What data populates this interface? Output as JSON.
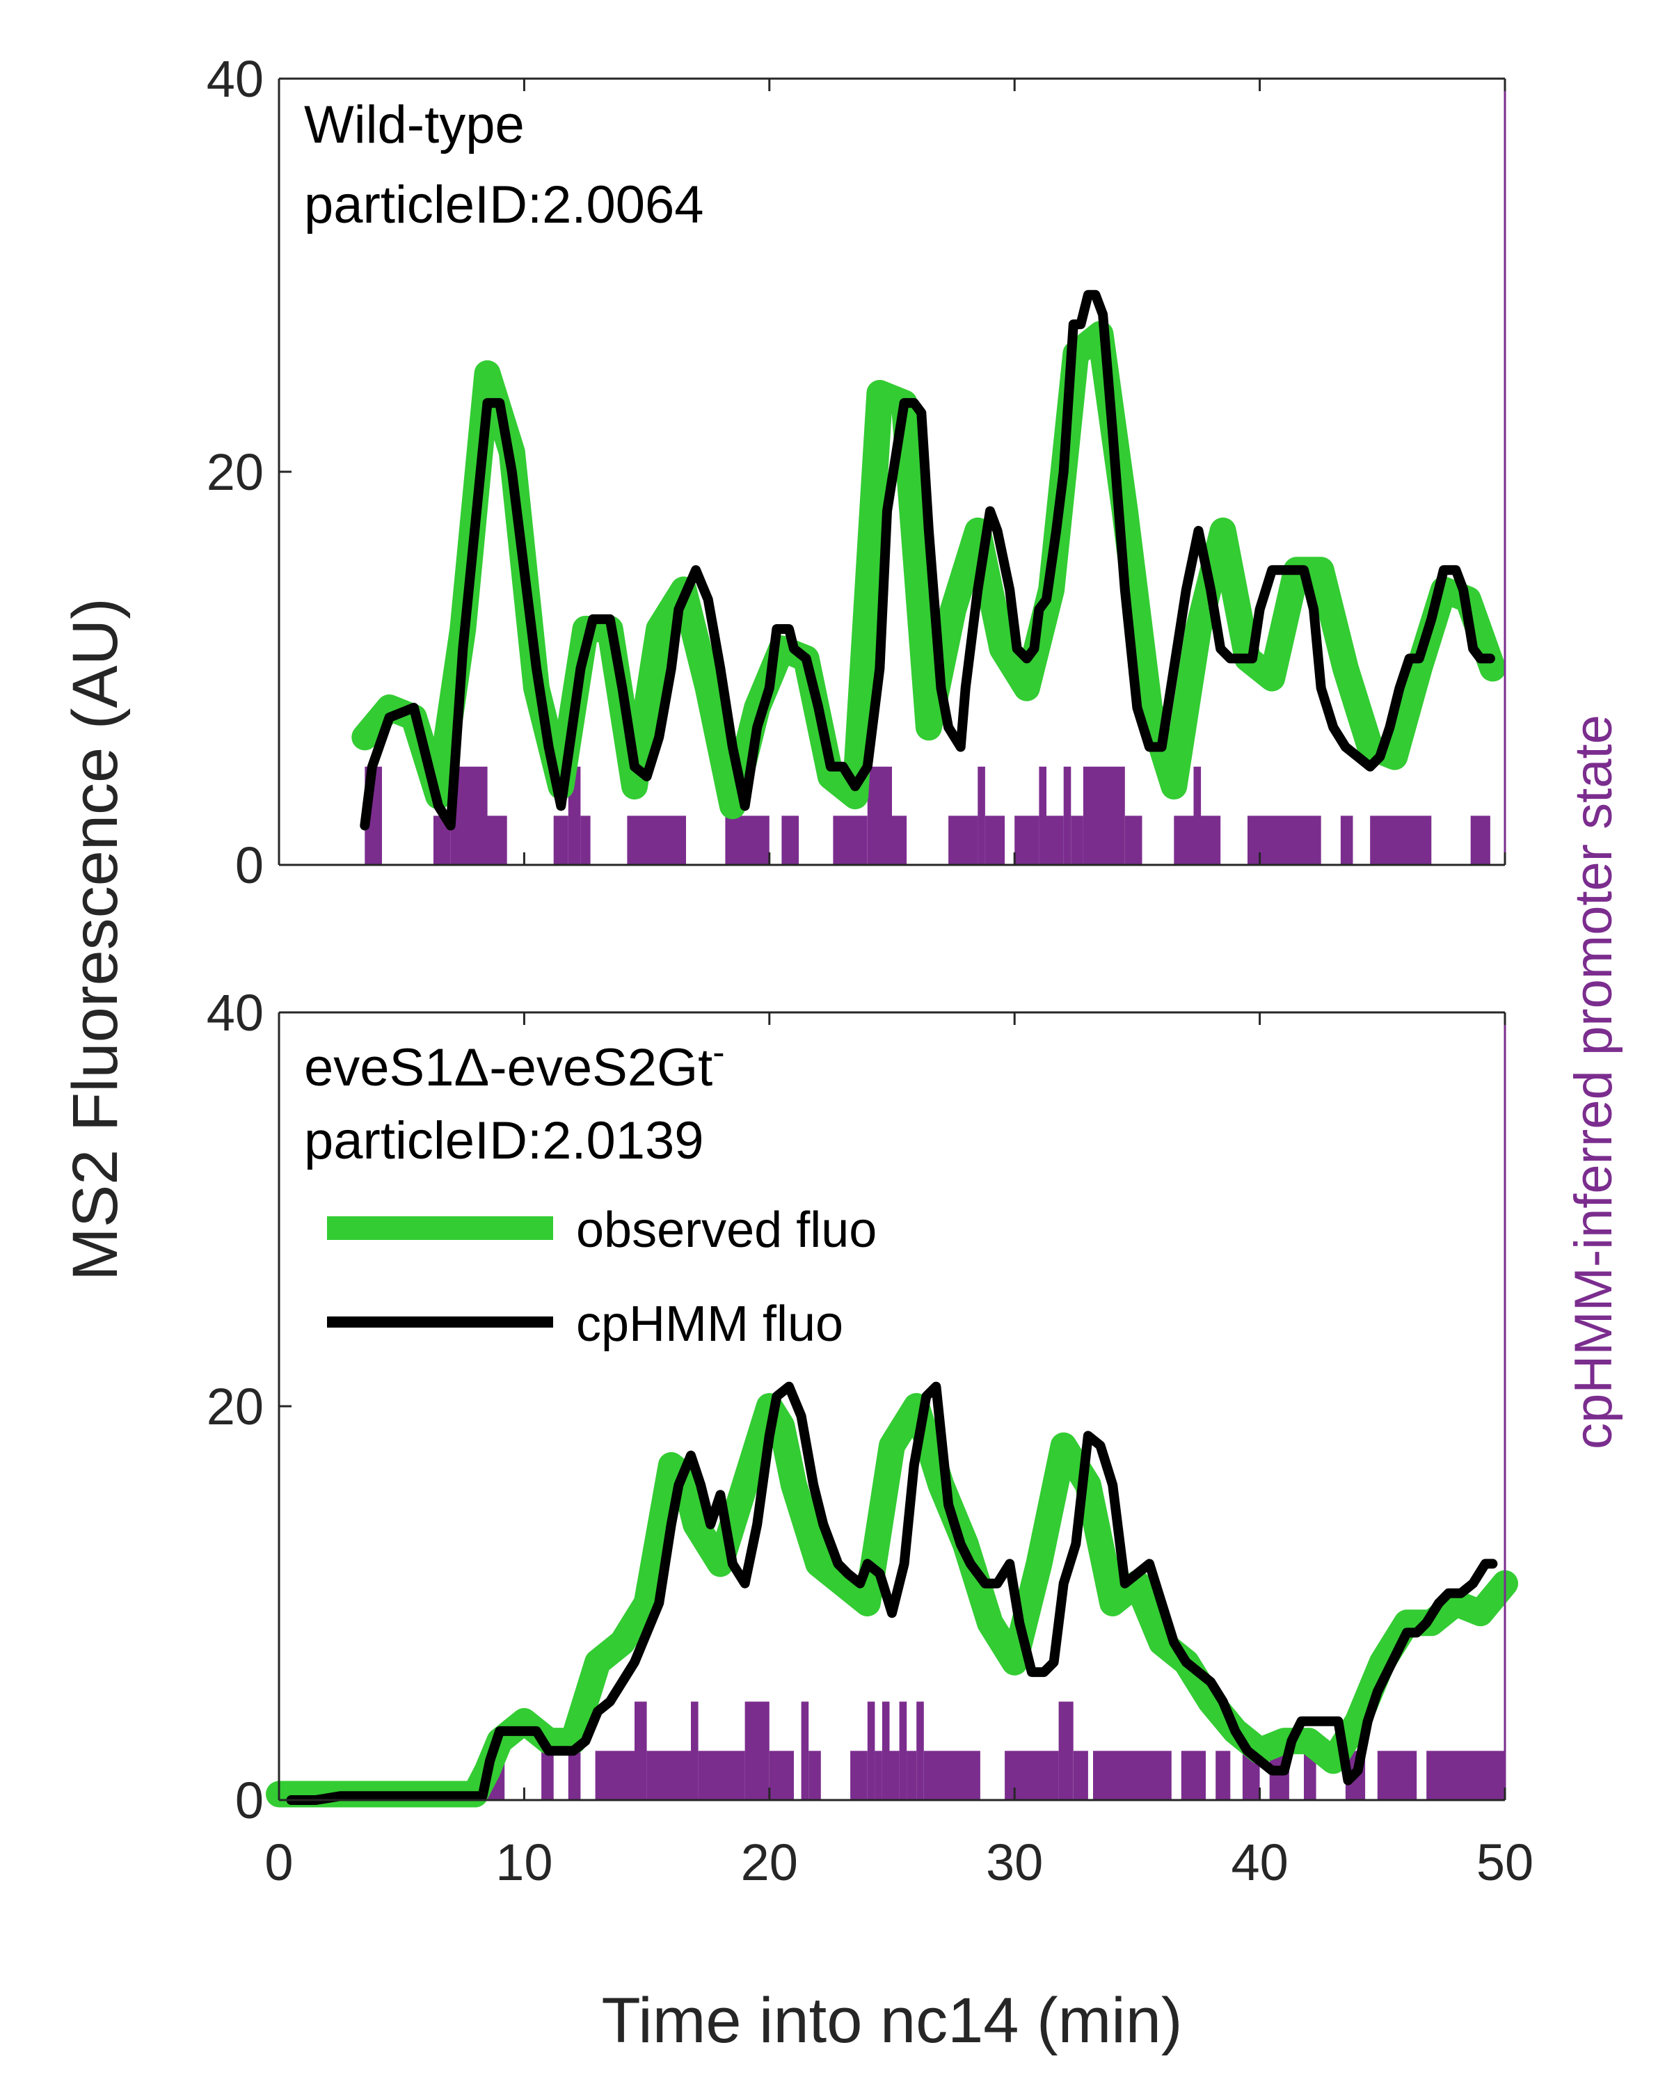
{
  "colors": {
    "observed": "#33cc33",
    "cphmm": "#000000",
    "promoter_state": "#7b2d8e",
    "axis": "#262626"
  },
  "chart_data": [
    {
      "type": "line",
      "label_line1": "Wild-type",
      "label_line2": "particleID:2.0064",
      "xlim": [
        0,
        50
      ],
      "ylim": [
        0,
        40
      ],
      "xticks": [
        0,
        10,
        20,
        30,
        40,
        50
      ],
      "yticks": [
        0,
        20,
        40
      ],
      "show_x_tick_labels": false,
      "series": [
        {
          "name": "observed fluo",
          "x": [
            3.5,
            4.5,
            5.5,
            6.5,
            7.5,
            8.5,
            9.5,
            10.5,
            11.5,
            12.5,
            13.5,
            14.5,
            15.5,
            16.5,
            17.5,
            18.5,
            19.5,
            20.5,
            21.5,
            22.5,
            23.5,
            24.5,
            25.5,
            26.5,
            27.5,
            28.5,
            29.5,
            30.5,
            31.5,
            32.5,
            33.5,
            34.5,
            35.5,
            36.5,
            37.5,
            38.5,
            39.5,
            40.5,
            41.5,
            42.5,
            43.5,
            44.5,
            45.5,
            46.5,
            47.5,
            48.5,
            49.5
          ],
          "y": [
            6.5,
            8,
            7.5,
            3.5,
            12,
            25,
            21,
            9,
            4,
            12,
            12,
            4,
            12,
            14,
            9,
            3,
            8,
            11,
            10.5,
            4.5,
            3.5,
            24,
            23.5,
            7,
            13,
            17,
            11,
            9,
            14,
            26,
            27,
            18,
            8,
            4,
            12,
            17,
            10.5,
            9.5,
            15,
            15,
            10,
            6,
            5.5,
            10,
            14,
            13.5,
            10
          ]
        },
        {
          "name": "cpHMM fluo",
          "x": [
            3.5,
            3.8,
            4.5,
            5.5,
            6.5,
            7.0,
            7.5,
            8.5,
            9.0,
            9.5,
            10.5,
            11.0,
            11.5,
            12.3,
            12.8,
            13.5,
            14.0,
            14.5,
            15.0,
            15.5,
            16.0,
            16.3,
            17.0,
            17.5,
            18.0,
            18.5,
            19.0,
            19.5,
            20.0,
            20.3,
            20.8,
            21.0,
            21.5,
            22.0,
            22.5,
            23.0,
            23.5,
            24.0,
            24.5,
            24.8,
            25.5,
            25.9,
            26.2,
            26.5,
            27.0,
            27.3,
            27.8,
            28.0,
            28.5,
            29.0,
            29.3,
            29.8,
            30.1,
            30.5,
            30.8,
            31.0,
            31.3,
            31.7,
            32.0,
            32.4,
            32.7,
            33.0,
            33.3,
            33.6,
            34.0,
            34.5,
            35.0,
            35.5,
            36.0,
            36.5,
            37.0,
            37.5,
            38.0,
            38.4,
            38.8,
            39.2,
            39.7,
            40.0,
            40.5,
            41.0,
            41.4,
            41.8,
            42.2,
            42.5,
            43.0,
            43.5,
            44.0,
            44.5,
            44.9,
            45.3,
            45.7,
            46.1,
            46.5,
            47.0,
            47.5,
            48.0,
            48.3,
            48.7,
            49.0,
            49.4
          ],
          "y": [
            2,
            5,
            7.5,
            8,
            3,
            2,
            11,
            23.5,
            23.5,
            20,
            10,
            6,
            3,
            10,
            12.5,
            12.5,
            9,
            5,
            4.5,
            6.5,
            10,
            13,
            15,
            13.5,
            10,
            6,
            3,
            7,
            9,
            12,
            12,
            11,
            10.5,
            8,
            5,
            5,
            4,
            5,
            10,
            18,
            23.5,
            23.5,
            23,
            17,
            9,
            7,
            6,
            9,
            14,
            18,
            17,
            14,
            11,
            10.5,
            11,
            13,
            13.5,
            17,
            20,
            27.5,
            27.5,
            29,
            29,
            28,
            22,
            14,
            8,
            6,
            6,
            10,
            14,
            17,
            14,
            11,
            10.5,
            10.5,
            10.5,
            13,
            15,
            15,
            15,
            15,
            13,
            9,
            7,
            6,
            5.5,
            5,
            5.5,
            7,
            9,
            10.5,
            10.5,
            12.5,
            15,
            15,
            14,
            11,
            10.5,
            10.5
          ]
        }
      ],
      "promoter_state": {
        "name": "cpHMM-inferred promoter state",
        "segments": [
          {
            "x0": 3.5,
            "x1": 4.2,
            "state": 2
          },
          {
            "x0": 6.3,
            "x1": 7.0,
            "state": 1
          },
          {
            "x0": 7.0,
            "x1": 8.5,
            "state": 2
          },
          {
            "x0": 8.5,
            "x1": 9.3,
            "state": 1
          },
          {
            "x0": 11.2,
            "x1": 11.8,
            "state": 1
          },
          {
            "x0": 11.8,
            "x1": 12.3,
            "state": 2
          },
          {
            "x0": 12.3,
            "x1": 12.7,
            "state": 1
          },
          {
            "x0": 14.2,
            "x1": 16.6,
            "state": 1
          },
          {
            "x0": 18.2,
            "x1": 20.0,
            "state": 1
          },
          {
            "x0": 20.5,
            "x1": 21.2,
            "state": 1
          },
          {
            "x0": 22.6,
            "x1": 24.0,
            "state": 1
          },
          {
            "x0": 24.0,
            "x1": 25.0,
            "state": 2
          },
          {
            "x0": 25.0,
            "x1": 25.6,
            "state": 1
          },
          {
            "x0": 27.3,
            "x1": 28.5,
            "state": 1
          },
          {
            "x0": 28.5,
            "x1": 28.8,
            "state": 2
          },
          {
            "x0": 28.8,
            "x1": 29.6,
            "state": 1
          },
          {
            "x0": 30.0,
            "x1": 31.0,
            "state": 1
          },
          {
            "x0": 31.0,
            "x1": 31.3,
            "state": 2
          },
          {
            "x0": 31.3,
            "x1": 32.0,
            "state": 1
          },
          {
            "x0": 32.0,
            "x1": 32.3,
            "state": 2
          },
          {
            "x0": 32.3,
            "x1": 32.8,
            "state": 1
          },
          {
            "x0": 32.8,
            "x1": 34.5,
            "state": 2
          },
          {
            "x0": 34.5,
            "x1": 35.2,
            "state": 1
          },
          {
            "x0": 36.5,
            "x1": 37.3,
            "state": 1
          },
          {
            "x0": 37.3,
            "x1": 37.6,
            "state": 2
          },
          {
            "x0": 37.6,
            "x1": 38.4,
            "state": 1
          },
          {
            "x0": 39.5,
            "x1": 42.5,
            "state": 1
          },
          {
            "x0": 43.3,
            "x1": 43.8,
            "state": 1
          },
          {
            "x0": 44.5,
            "x1": 47.0,
            "state": 1
          },
          {
            "x0": 48.6,
            "x1": 49.4,
            "state": 1
          }
        ]
      }
    },
    {
      "type": "line",
      "label_line1": "eveS1Δ-eveS2Gt",
      "label_superscript": "-",
      "label_line2": "particleID:2.0139",
      "xlim": [
        0,
        50
      ],
      "ylim": [
        0,
        40
      ],
      "xticks": [
        0,
        10,
        20,
        30,
        40,
        50
      ],
      "yticks": [
        0,
        20,
        40
      ],
      "show_x_tick_labels": true,
      "legend": {
        "position": "upper-left",
        "entries": [
          "observed fluo",
          "cpHMM fluo"
        ]
      },
      "series": [
        {
          "name": "observed fluo",
          "x": [
            0,
            1,
            2,
            3,
            4,
            5,
            6,
            7,
            8,
            8.5,
            9,
            10,
            11,
            12,
            13,
            14,
            15,
            16,
            16.5,
            17,
            18,
            19,
            20,
            20.5,
            21,
            22,
            23,
            24,
            25,
            26,
            27,
            28,
            29,
            30,
            31,
            32,
            33,
            34,
            35,
            36,
            37,
            38,
            39,
            40,
            41,
            42,
            43,
            44,
            45,
            46,
            47,
            48,
            49,
            50
          ],
          "y": [
            0.3,
            0.3,
            0.3,
            0.3,
            0.3,
            0.3,
            0.3,
            0.3,
            0.3,
            1.5,
            3,
            4,
            3,
            3,
            7,
            8,
            10,
            17,
            16.5,
            14,
            12,
            16,
            20,
            19,
            16,
            12,
            11,
            10,
            18,
            20,
            16,
            13,
            9,
            7,
            12,
            18,
            16,
            10,
            11,
            8,
            7,
            5,
            3.5,
            2.5,
            3,
            3,
            2,
            4,
            7,
            9,
            9,
            10,
            9.5,
            11
          ]
        },
        {
          "name": "cpHMM fluo",
          "x": [
            0.5,
            1.5,
            2.5,
            3.5,
            4.5,
            5.5,
            6.5,
            7.5,
            8.3,
            8.6,
            9.0,
            10.0,
            10.5,
            11.0,
            11.5,
            12.0,
            12.5,
            13.0,
            13.5,
            14.0,
            14.5,
            15.0,
            15.5,
            16.0,
            16.3,
            16.8,
            17.2,
            17.6,
            18.0,
            18.5,
            19.0,
            19.5,
            20.0,
            20.3,
            20.8,
            21.3,
            21.8,
            22.2,
            22.8,
            23.2,
            23.7,
            24.0,
            24.5,
            25.0,
            25.5,
            25.9,
            26.4,
            26.8,
            27.3,
            27.8,
            28.2,
            28.8,
            29.3,
            29.8,
            30.2,
            30.7,
            31.2,
            31.6,
            32.0,
            32.5,
            33.0,
            33.5,
            34.0,
            34.5,
            35.0,
            35.5,
            36.0,
            36.5,
            37.0,
            37.5,
            38.0,
            38.5,
            39.0,
            39.5,
            40.0,
            40.5,
            41.0,
            41.3,
            41.7,
            42.2,
            42.7,
            43.2,
            43.6,
            44.0,
            44.4,
            44.8,
            45.2,
            45.6,
            46.0,
            46.4,
            46.8,
            47.3,
            47.7,
            48.2,
            48.7,
            49.2,
            49.5
          ],
          "y": [
            0,
            0,
            0.2,
            0.2,
            0.2,
            0.2,
            0.2,
            0.2,
            0.2,
            2,
            3.5,
            3.5,
            3.5,
            2.5,
            2.5,
            2.5,
            3,
            4.5,
            5,
            6,
            7,
            8.5,
            10,
            14,
            16,
            17.5,
            16,
            14,
            15.5,
            12,
            11,
            14,
            18.5,
            20.5,
            21,
            19.5,
            16,
            14,
            12,
            11.5,
            11,
            12,
            11.5,
            9.5,
            12,
            17,
            20.5,
            21,
            15,
            13,
            12,
            11,
            11,
            12,
            9,
            6.5,
            6.5,
            7,
            11,
            13,
            18.5,
            18,
            16,
            11,
            11.5,
            12,
            10,
            8,
            7,
            6.5,
            6,
            5,
            3.5,
            2.5,
            2,
            1.5,
            1.5,
            3,
            4,
            4,
            4,
            4,
            1,
            1.5,
            4,
            5.5,
            6.5,
            7.5,
            8.5,
            8.5,
            9,
            10,
            10.5,
            10.5,
            11,
            12,
            12
          ]
        }
      ],
      "promoter_state": {
        "name": "cpHMM-inferred promoter state",
        "segments": [
          {
            "x0": 8.5,
            "x1": 9.2,
            "state": 1
          },
          {
            "x0": 10.7,
            "x1": 11.2,
            "state": 1
          },
          {
            "x0": 11.8,
            "x1": 12.3,
            "state": 1
          },
          {
            "x0": 12.9,
            "x1": 14.5,
            "state": 1
          },
          {
            "x0": 14.5,
            "x1": 15.0,
            "state": 2
          },
          {
            "x0": 15.0,
            "x1": 16.8,
            "state": 1
          },
          {
            "x0": 16.8,
            "x1": 17.1,
            "state": 2
          },
          {
            "x0": 17.1,
            "x1": 19.0,
            "state": 1
          },
          {
            "x0": 19.0,
            "x1": 20.0,
            "state": 2
          },
          {
            "x0": 20.0,
            "x1": 21.0,
            "state": 1
          },
          {
            "x0": 21.3,
            "x1": 21.6,
            "state": 2
          },
          {
            "x0": 21.6,
            "x1": 22.1,
            "state": 1
          },
          {
            "x0": 23.3,
            "x1": 24.0,
            "state": 1
          },
          {
            "x0": 24.0,
            "x1": 24.3,
            "state": 2
          },
          {
            "x0": 24.3,
            "x1": 24.6,
            "state": 1
          },
          {
            "x0": 24.6,
            "x1": 24.9,
            "state": 2
          },
          {
            "x0": 24.9,
            "x1": 25.3,
            "state": 1
          },
          {
            "x0": 25.3,
            "x1": 25.6,
            "state": 2
          },
          {
            "x0": 25.6,
            "x1": 26.0,
            "state": 1
          },
          {
            "x0": 26.0,
            "x1": 26.3,
            "state": 2
          },
          {
            "x0": 26.3,
            "x1": 28.6,
            "state": 1
          },
          {
            "x0": 29.6,
            "x1": 31.8,
            "state": 1
          },
          {
            "x0": 31.8,
            "x1": 32.4,
            "state": 2
          },
          {
            "x0": 32.4,
            "x1": 33.0,
            "state": 1
          },
          {
            "x0": 33.2,
            "x1": 36.4,
            "state": 1
          },
          {
            "x0": 36.8,
            "x1": 37.8,
            "state": 1
          },
          {
            "x0": 38.2,
            "x1": 38.8,
            "state": 1
          },
          {
            "x0": 39.3,
            "x1": 40.0,
            "state": 1
          },
          {
            "x0": 40.4,
            "x1": 41.2,
            "state": 1
          },
          {
            "x0": 41.8,
            "x1": 42.3,
            "state": 1
          },
          {
            "x0": 43.5,
            "x1": 44.3,
            "state": 1
          },
          {
            "x0": 44.8,
            "x1": 46.4,
            "state": 1
          },
          {
            "x0": 46.8,
            "x1": 50.0,
            "state": 1
          }
        ]
      }
    }
  ],
  "axes": {
    "xlabel": "Time into nc14 (min)",
    "ylabel": "MS2 Fluorescence (AU)",
    "right_ylabel": "cpHMM-inferred promoter state"
  }
}
